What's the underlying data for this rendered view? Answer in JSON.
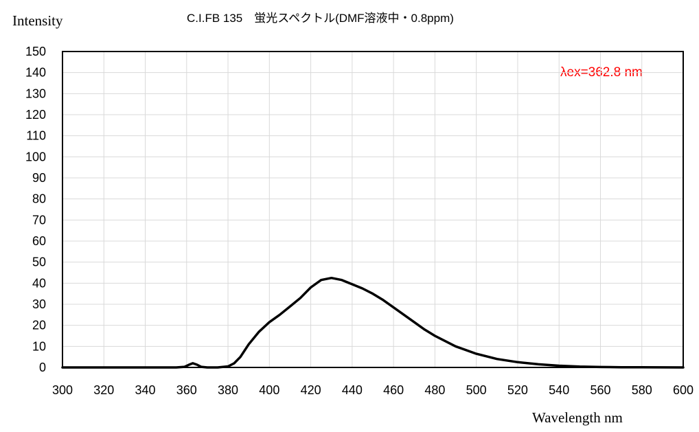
{
  "chart_data": {
    "type": "line",
    "title": "C.I.FB 135　蛍光スペクトル(DMF溶液中・0.8ppm)",
    "xlabel": "Wavelength nm",
    "ylabel": "Intensity",
    "xlim": [
      300,
      600
    ],
    "ylim": [
      0,
      150
    ],
    "xticks": [
      300,
      320,
      340,
      360,
      380,
      400,
      420,
      440,
      460,
      480,
      500,
      520,
      540,
      560,
      580,
      600
    ],
    "yticks": [
      0,
      10,
      20,
      30,
      40,
      50,
      60,
      70,
      80,
      90,
      100,
      110,
      120,
      130,
      140,
      150
    ],
    "grid": true,
    "annotation": "λex=362.8 nm",
    "annotation_color": "#ff0000",
    "line_color": "#000000",
    "series": [
      {
        "x": [
          300,
          355,
          359,
          361,
          363,
          365,
          367,
          370,
          375,
          380,
          383,
          386,
          390,
          395,
          400,
          405,
          410,
          415,
          420,
          425,
          430,
          435,
          440,
          445,
          450,
          455,
          460,
          465,
          470,
          475,
          480,
          490,
          500,
          510,
          520,
          530,
          540,
          550,
          560,
          570,
          580,
          600
        ],
        "y": [
          0,
          0,
          0.3,
          1.2,
          2,
          1.3,
          0.3,
          0,
          0,
          0.5,
          2,
          5,
          11,
          17,
          21.5,
          25,
          29,
          33,
          38,
          41.5,
          42.5,
          41.5,
          39.5,
          37.5,
          35,
          32,
          28.5,
          25,
          21.5,
          18,
          15,
          10,
          6.5,
          4,
          2.5,
          1.5,
          0.8,
          0.4,
          0.2,
          0.1,
          0.05,
          0
        ]
      }
    ]
  }
}
